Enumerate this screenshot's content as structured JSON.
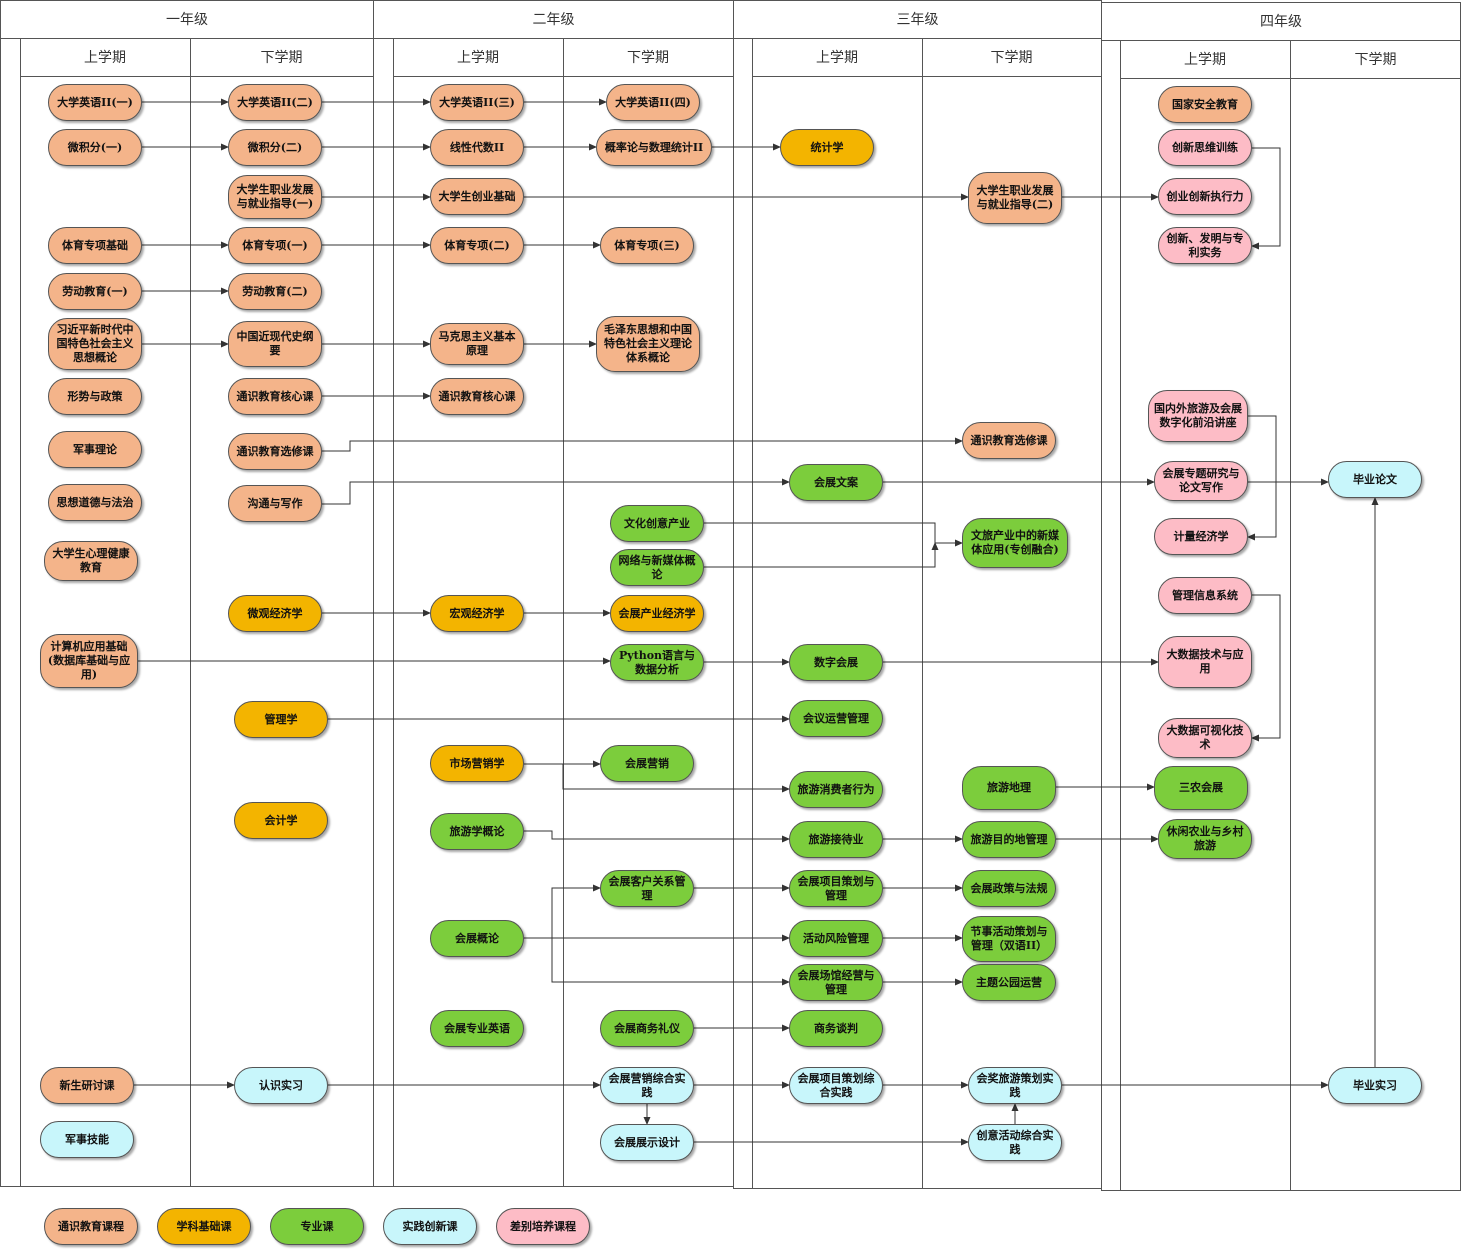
{
  "years": [
    {
      "id": "y1",
      "title": "一年级",
      "sem1": "上学期",
      "sem2": "下学期"
    },
    {
      "id": "y2",
      "title": "二年级",
      "sem1": "上学期",
      "sem2": "下学期"
    },
    {
      "id": "y3",
      "title": "三年级",
      "sem1": "上学期",
      "sem2": "下学期"
    },
    {
      "id": "y4",
      "title": "四年级",
      "sem1": "上学期",
      "sem2": "下学期"
    }
  ],
  "courses": [
    {
      "id": "a1",
      "label": "大学英语II(一)",
      "type": "general"
    },
    {
      "id": "a2",
      "label": "大学英语II(二)",
      "type": "general"
    },
    {
      "id": "a3",
      "label": "大学英语II(三)",
      "type": "general"
    },
    {
      "id": "a4",
      "label": "大学英语II(四)",
      "type": "general"
    },
    {
      "id": "b1",
      "label": "微积分(一)",
      "type": "general"
    },
    {
      "id": "b2",
      "label": "微积分(二)",
      "type": "general"
    },
    {
      "id": "b3",
      "label": "线性代数II",
      "type": "general"
    },
    {
      "id": "b4",
      "label": "概率论与数理统计II",
      "type": "general"
    },
    {
      "id": "b5",
      "label": "统计学",
      "type": "foundation"
    },
    {
      "id": "c1",
      "label": "大学生职业发展与就业指导(一)",
      "type": "general"
    },
    {
      "id": "c2",
      "label": "大学生创业基础",
      "type": "general"
    },
    {
      "id": "c3",
      "label": "大学生职业发展与就业指导(二)",
      "type": "general"
    },
    {
      "id": "d1",
      "label": "体育专项基础",
      "type": "general"
    },
    {
      "id": "d2",
      "label": "体育专项(一)",
      "type": "general"
    },
    {
      "id": "d3",
      "label": "体育专项(二)",
      "type": "general"
    },
    {
      "id": "d4",
      "label": "体育专项(三)",
      "type": "general"
    },
    {
      "id": "e1",
      "label": "劳动教育(一)",
      "type": "general"
    },
    {
      "id": "e2",
      "label": "劳动教育(二)",
      "type": "general"
    },
    {
      "id": "f1",
      "label": "习近平新时代中国特色社会主义思想概论",
      "type": "general"
    },
    {
      "id": "f2",
      "label": "中国近现代史纲要",
      "type": "general"
    },
    {
      "id": "f3",
      "label": "马克思主义基本原理",
      "type": "general"
    },
    {
      "id": "f4",
      "label": "毛泽东思想和中国特色社会主义理论体系概论",
      "type": "general"
    },
    {
      "id": "g1",
      "label": "形势与政策",
      "type": "general"
    },
    {
      "id": "g2",
      "label": "通识教育核心课",
      "type": "general"
    },
    {
      "id": "g3",
      "label": "通识教育核心课",
      "type": "general"
    },
    {
      "id": "h1",
      "label": "军事理论",
      "type": "general"
    },
    {
      "id": "h2",
      "label": "通识教育选修课",
      "type": "general"
    },
    {
      "id": "h3",
      "label": "通识教育选修课",
      "type": "general"
    },
    {
      "id": "i1",
      "label": "思想道德与法治",
      "type": "general"
    },
    {
      "id": "i2",
      "label": "沟通与写作",
      "type": "general"
    },
    {
      "id": "i3",
      "label": "会展文案",
      "type": "major"
    },
    {
      "id": "j1",
      "label": "大学生心理健康教育",
      "type": "general"
    },
    {
      "id": "k1",
      "label": "文化创意产业",
      "type": "major"
    },
    {
      "id": "k2",
      "label": "网络与新媒体概论",
      "type": "major"
    },
    {
      "id": "k3",
      "label": "文旅产业中的新媒体应用(专创融合)",
      "type": "major"
    },
    {
      "id": "l1",
      "label": "微观经济学",
      "type": "foundation"
    },
    {
      "id": "l2",
      "label": "宏观经济学",
      "type": "foundation"
    },
    {
      "id": "l3",
      "label": "会展产业经济学",
      "type": "foundation"
    },
    {
      "id": "m1",
      "label": "计算机应用基础(数据库基础与应用)",
      "type": "general"
    },
    {
      "id": "m2",
      "label": "Python语言与数据分析",
      "type": "major"
    },
    {
      "id": "m3",
      "label": "数字会展",
      "type": "major"
    },
    {
      "id": "n1",
      "label": "管理学",
      "type": "foundation"
    },
    {
      "id": "n2",
      "label": "会议运营管理",
      "type": "major"
    },
    {
      "id": "o1",
      "label": "会计学",
      "type": "foundation"
    },
    {
      "id": "p1",
      "label": "市场营销学",
      "type": "foundation"
    },
    {
      "id": "p2",
      "label": "会展营销",
      "type": "major"
    },
    {
      "id": "p3",
      "label": "旅游消费者行为",
      "type": "major"
    },
    {
      "id": "q1",
      "label": "旅游地理",
      "type": "major"
    },
    {
      "id": "q2",
      "label": "三农会展",
      "type": "major"
    },
    {
      "id": "r1",
      "label": "旅游学概论",
      "type": "major"
    },
    {
      "id": "r2",
      "label": "旅游接待业",
      "type": "major"
    },
    {
      "id": "r3",
      "label": "旅游目的地管理",
      "type": "major"
    },
    {
      "id": "r4",
      "label": "休闲农业与乡村旅游",
      "type": "major"
    },
    {
      "id": "s1",
      "label": "会展客户关系管理",
      "type": "major"
    },
    {
      "id": "s2",
      "label": "会展项目策划与管理",
      "type": "major"
    },
    {
      "id": "s3",
      "label": "会展政策与法规",
      "type": "major"
    },
    {
      "id": "t1",
      "label": "会展概论",
      "type": "major"
    },
    {
      "id": "t2",
      "label": "活动风险管理",
      "type": "major"
    },
    {
      "id": "t3",
      "label": "节事活动策划与管理（双语II）",
      "type": "major"
    },
    {
      "id": "u1",
      "label": "会展场馆经营与管理",
      "type": "major"
    },
    {
      "id": "u2",
      "label": "主题公园运营",
      "type": "major"
    },
    {
      "id": "v1",
      "label": "会展专业英语",
      "type": "major"
    },
    {
      "id": "v2",
      "label": "会展商务礼仪",
      "type": "major"
    },
    {
      "id": "v3",
      "label": "商务谈判",
      "type": "major"
    },
    {
      "id": "w1",
      "label": "新生研讨课",
      "type": "general"
    },
    {
      "id": "w2",
      "label": "认识实习",
      "type": "practice"
    },
    {
      "id": "w3",
      "label": "会展营销综合实践",
      "type": "practice"
    },
    {
      "id": "w4",
      "label": "会展项目策划综合实践",
      "type": "practice"
    },
    {
      "id": "w5",
      "label": "会奖旅游策划实践",
      "type": "practice"
    },
    {
      "id": "w6",
      "label": "毕业实习",
      "type": "practice"
    },
    {
      "id": "x1",
      "label": "军事技能",
      "type": "practice"
    },
    {
      "id": "x2",
      "label": "会展展示设计",
      "type": "practice"
    },
    {
      "id": "x3",
      "label": "创意活动综合实践",
      "type": "practice"
    },
    {
      "id": "y4a",
      "label": "国家安全教育",
      "type": "general"
    },
    {
      "id": "y4b",
      "label": "创新思维训练",
      "type": "elective"
    },
    {
      "id": "y4c",
      "label": "创业创新执行力",
      "type": "elective"
    },
    {
      "id": "y4d",
      "label": "创新、发明与专利实务",
      "type": "elective"
    },
    {
      "id": "y4e",
      "label": "国内外旅游及会展数字化前沿讲座",
      "type": "elective"
    },
    {
      "id": "y4f",
      "label": "会展专题研究与论文写作",
      "type": "elective"
    },
    {
      "id": "y4g",
      "label": "计量经济学",
      "type": "elective"
    },
    {
      "id": "y4h",
      "label": "毕业论文",
      "type": "practice"
    },
    {
      "id": "y4i",
      "label": "管理信息系统",
      "type": "elective"
    },
    {
      "id": "y4j",
      "label": "大数据技术与应用",
      "type": "elective"
    },
    {
      "id": "y4k",
      "label": "大数据可视化技术",
      "type": "elective"
    }
  ],
  "legend": [
    {
      "label": "通识教育课程",
      "type": "general"
    },
    {
      "label": "学科基础课",
      "type": "foundation"
    },
    {
      "label": "专业课",
      "type": "major"
    },
    {
      "label": "实践创新课",
      "type": "practice"
    },
    {
      "label": "差别培养课程",
      "type": "elective"
    }
  ],
  "colors": {
    "general": "#f4b48a",
    "foundation": "#f3b400",
    "major": "#7ccd3c",
    "practice": "#c8f6fb",
    "elective": "#fdbcc6"
  }
}
